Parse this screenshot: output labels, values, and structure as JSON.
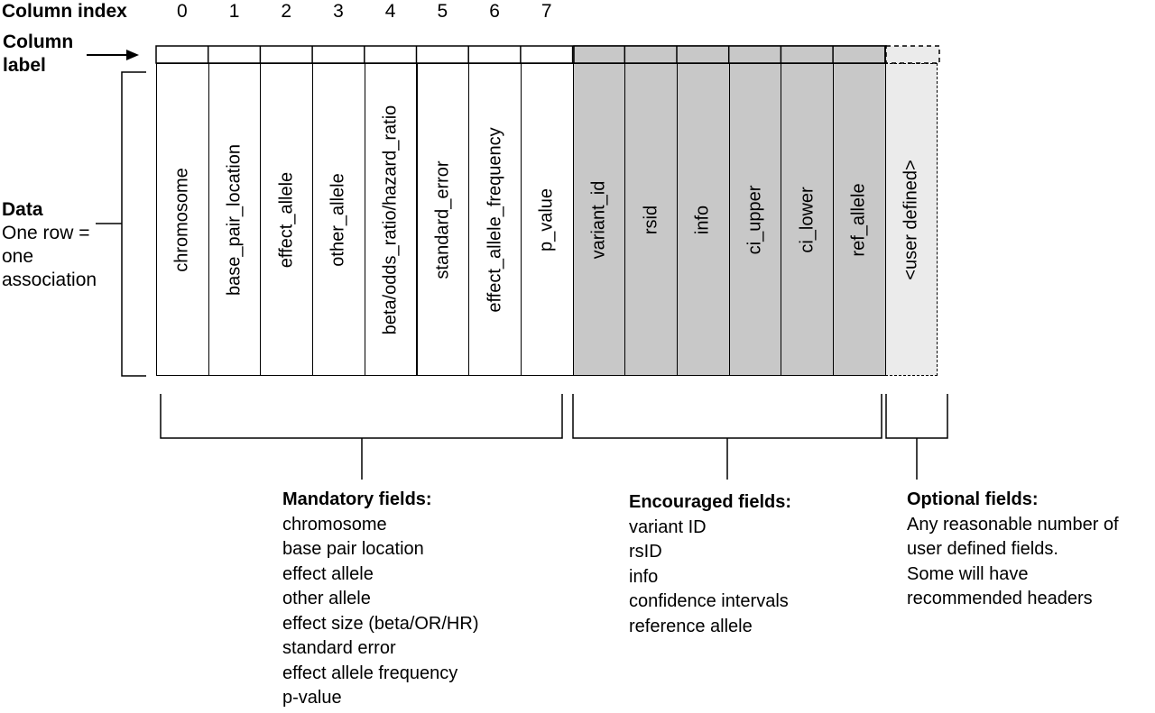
{
  "labels": {
    "column_index": "Column index",
    "column_label_line1": "Column",
    "column_label_line2": "label",
    "data_title": "Data",
    "data_desc": [
      "One row =",
      "one",
      "association"
    ]
  },
  "column_indices": [
    "0",
    "1",
    "2",
    "3",
    "4",
    "5",
    "6",
    "7"
  ],
  "columns": [
    {
      "label": "chromosome",
      "group": "mandatory"
    },
    {
      "label": "base_pair_location",
      "group": "mandatory"
    },
    {
      "label": "effect_allele",
      "group": "mandatory"
    },
    {
      "label": "other_allele",
      "group": "mandatory"
    },
    {
      "label": "beta/odds_ratio/hazard_ratio",
      "group": "mandatory"
    },
    {
      "label": "standard_error",
      "group": "mandatory"
    },
    {
      "label": "effect_allele_frequency",
      "group": "mandatory"
    },
    {
      "label": "p_value",
      "group": "mandatory"
    },
    {
      "label": "variant_id",
      "group": "encouraged"
    },
    {
      "label": "rsid",
      "group": "encouraged"
    },
    {
      "label": "info",
      "group": "encouraged"
    },
    {
      "label": "ci_upper",
      "group": "encouraged"
    },
    {
      "label": "ci_lower",
      "group": "encouraged"
    },
    {
      "label": "ref_allele",
      "group": "encouraged"
    },
    {
      "label": "<user defined>",
      "group": "optional"
    }
  ],
  "groups": {
    "mandatory": {
      "title": "Mandatory fields:",
      "items": [
        "chromosome",
        "base pair location",
        "effect allele",
        "other allele",
        "effect size (beta/OR/HR)",
        "standard error",
        "effect allele frequency",
        "p-value"
      ]
    },
    "encouraged": {
      "title": "Encouraged fields:",
      "items": [
        "variant ID",
        "rsID",
        "info",
        "confidence intervals",
        "reference allele"
      ]
    },
    "optional": {
      "title": "Optional fields:",
      "items": [
        "Any reasonable number of",
        "user defined fields.",
        "Some will have",
        "recommended headers"
      ]
    }
  },
  "colors": {
    "mandatory_fill": "#ffffff",
    "encouraged_fill": "#c8c8c8",
    "optional_fill": "#ebebeb",
    "line": "#000000"
  }
}
